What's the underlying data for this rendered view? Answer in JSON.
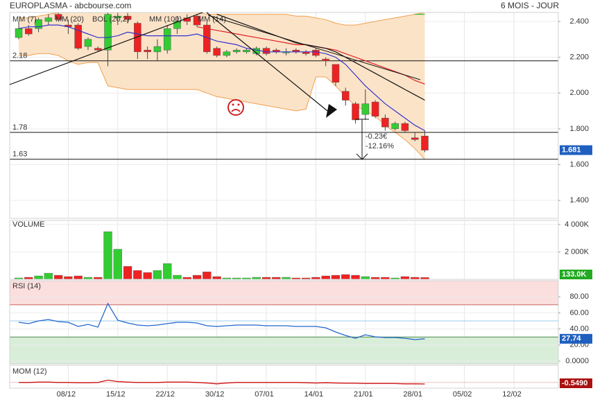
{
  "header": {
    "title": "EUROPLASMA - abcbourse.com",
    "period": "6 MOIS - JOUR"
  },
  "chart_data": [
    {
      "type": "candlestick",
      "categories": [
        null,
        null,
        null,
        null,
        null,
        "08/12",
        null,
        null,
        null,
        null,
        "15/12",
        null,
        null,
        null,
        null,
        "22/12",
        null,
        null,
        null,
        null,
        "30/12",
        null,
        null,
        null,
        null,
        "07/01",
        null,
        null,
        null,
        null,
        "14/01",
        null,
        null,
        null,
        null,
        "21/01",
        null,
        null,
        null,
        null,
        "28/01",
        null,
        null,
        null,
        null,
        "05/02",
        null,
        null,
        null,
        null,
        "12/02",
        null,
        null,
        null,
        null
      ],
      "open": [
        2.31,
        2.36,
        2.36,
        2.4,
        2.44,
        2.38,
        2.38,
        2.26,
        2.25,
        2.24,
        2.42,
        2.43,
        2.39,
        2.24,
        2.23,
        2.24,
        2.36,
        2.42,
        2.43,
        2.38,
        2.25,
        2.21,
        2.23,
        2.23,
        2.22,
        2.25,
        2.24,
        2.23,
        2.24,
        2.23,
        2.24,
        2.19,
        2.16,
        2.01,
        1.94,
        1.88,
        1.95,
        1.86,
        1.8,
        1.83,
        1.75,
        1.76,
        null,
        null,
        null,
        null,
        null,
        null,
        null,
        null,
        null,
        null,
        null,
        null,
        null
      ],
      "high": [
        2.4,
        2.38,
        2.42,
        2.44,
        2.45,
        2.41,
        2.39,
        2.31,
        2.26,
        2.45,
        2.45,
        2.45,
        2.4,
        2.26,
        2.3,
        2.38,
        2.43,
        2.44,
        2.44,
        2.4,
        2.26,
        2.24,
        2.25,
        2.25,
        2.26,
        2.26,
        2.25,
        2.25,
        2.25,
        2.24,
        2.25,
        2.2,
        2.16,
        2.03,
        1.95,
        2.02,
        1.96,
        1.88,
        1.84,
        1.84,
        1.78,
        1.79,
        null,
        null,
        null,
        null,
        null,
        null,
        null,
        null,
        null,
        null,
        null,
        null,
        null
      ],
      "low": [
        2.3,
        2.32,
        2.34,
        2.38,
        2.4,
        2.33,
        2.24,
        2.24,
        2.23,
        2.15,
        2.38,
        2.39,
        2.19,
        2.19,
        2.18,
        2.22,
        2.33,
        2.38,
        2.37,
        2.22,
        2.2,
        2.2,
        2.22,
        2.22,
        2.21,
        2.21,
        2.22,
        2.21,
        2.22,
        2.21,
        2.2,
        2.15,
        2.04,
        1.93,
        1.83,
        1.85,
        1.86,
        1.79,
        1.79,
        1.78,
        1.73,
        1.67,
        null,
        null,
        null,
        null,
        null,
        null,
        null,
        null,
        null,
        null,
        null,
        null,
        null
      ],
      "close": [
        2.36,
        2.33,
        2.41,
        2.42,
        2.41,
        2.37,
        2.25,
        2.3,
        2.24,
        2.44,
        2.43,
        2.41,
        2.23,
        2.23,
        2.26,
        2.36,
        2.4,
        2.4,
        2.38,
        2.23,
        2.21,
        2.23,
        2.24,
        2.24,
        2.25,
        2.22,
        2.23,
        2.23,
        2.23,
        2.22,
        2.21,
        2.18,
        2.06,
        1.96,
        1.85,
        1.94,
        1.87,
        1.81,
        1.83,
        1.79,
        1.74,
        1.681,
        null,
        null,
        null,
        null,
        null,
        null,
        null,
        null,
        null,
        null,
        null,
        null,
        null
      ],
      "up_color": "#33cc33",
      "down_color": "#ee2222",
      "band": {
        "name": "BOL (20,2)",
        "color": "#f0a050",
        "fill": "#fbe3c8",
        "upper": [
          2.42,
          2.42,
          2.43,
          2.44,
          2.45,
          2.45,
          2.45,
          2.45,
          2.45,
          2.45,
          2.45,
          2.45,
          2.45,
          2.45,
          2.45,
          2.45,
          2.45,
          2.45,
          2.45,
          2.44,
          2.44,
          2.44,
          2.44,
          2.44,
          2.44,
          2.44,
          2.44,
          2.44,
          2.43,
          2.43,
          2.42,
          2.41,
          2.39,
          2.38,
          2.38,
          2.39,
          2.4,
          2.41,
          2.42,
          2.43,
          2.44,
          2.45,
          null,
          null,
          null,
          null,
          null,
          null,
          null,
          null,
          null,
          null,
          null,
          null,
          null
        ],
        "lower": [
          2.21,
          2.21,
          2.22,
          2.22,
          2.21,
          2.18,
          2.16,
          2.17,
          2.17,
          2.04,
          2.03,
          2.02,
          2.02,
          2.02,
          2.02,
          2.02,
          2.02,
          2.02,
          2.02,
          2.0,
          1.98,
          1.97,
          1.96,
          1.95,
          1.94,
          1.93,
          1.92,
          1.91,
          1.9,
          1.91,
          2.09,
          2.09,
          2.04,
          1.98,
          1.93,
          1.9,
          1.87,
          1.82,
          1.78,
          1.74,
          1.69,
          1.63,
          null,
          null,
          null,
          null,
          null,
          null,
          null,
          null,
          null,
          null,
          null,
          null,
          null
        ]
      },
      "series": [
        {
          "name": "MM (7)",
          "color": "#3333cc",
          "values": [
            2.36,
            2.37,
            2.37,
            2.38,
            2.38,
            2.37,
            2.35,
            2.33,
            2.31,
            2.31,
            2.32,
            2.34,
            2.33,
            2.32,
            2.32,
            2.32,
            2.32,
            2.32,
            2.33,
            2.31,
            2.29,
            2.28,
            2.27,
            2.25,
            2.24,
            2.23,
            2.23,
            2.23,
            2.23,
            2.23,
            2.23,
            2.22,
            2.2,
            2.16,
            2.1,
            2.04,
            1.99,
            1.94,
            1.9,
            1.86,
            1.82,
            1.79,
            null,
            null,
            null,
            null,
            null,
            null,
            null,
            null,
            null,
            null,
            null,
            null,
            null
          ]
        },
        {
          "name": "MM (20)",
          "color": "#dd2222",
          "values": [
            null,
            null,
            null,
            null,
            null,
            null,
            null,
            null,
            null,
            null,
            null,
            null,
            null,
            null,
            null,
            null,
            null,
            null,
            2.37,
            2.36,
            2.35,
            2.34,
            2.33,
            2.32,
            2.31,
            2.3,
            2.29,
            2.28,
            2.27,
            2.27,
            2.26,
            2.25,
            2.24,
            2.22,
            2.2,
            2.18,
            2.16,
            2.14,
            2.12,
            2.1,
            2.07,
            2.05,
            null,
            null,
            null,
            null,
            null,
            null,
            null,
            null,
            null,
            null,
            null,
            null,
            null
          ]
        },
        {
          "name": "MM (100)",
          "color": "#33bb33",
          "values": [
            null,
            null,
            null,
            null,
            null,
            null,
            null,
            null,
            null,
            null,
            null,
            null,
            null,
            null,
            null,
            null,
            null,
            null,
            null,
            null,
            null,
            null,
            null,
            null,
            null,
            null,
            null,
            null,
            null,
            null,
            null,
            null,
            null,
            null,
            null,
            null,
            null,
            null,
            null,
            null,
            2.44,
            2.44,
            null,
            null,
            null,
            null,
            null,
            null,
            null,
            null,
            null,
            null,
            null,
            null,
            null
          ]
        },
        {
          "name": "MM (14)",
          "color": "#111111",
          "values": [
            null,
            null,
            null,
            null,
            null,
            null,
            null,
            null,
            null,
            null,
            null,
            null,
            null,
            null,
            null,
            null,
            null,
            null,
            null,
            null,
            2.44,
            2.42,
            2.4,
            2.38,
            2.36,
            2.34,
            2.32,
            2.3,
            2.28,
            2.27,
            2.26,
            2.25,
            2.23,
            2.2,
            2.17,
            2.14,
            2.11,
            2.08,
            2.05,
            2.02,
            1.99,
            1.96,
            null,
            null,
            null,
            null,
            null,
            null,
            null,
            null,
            null,
            null,
            null,
            null,
            null
          ]
        }
      ],
      "ylim": [
        1.3,
        2.45
      ],
      "yticks": [
        {
          "value": 2.4,
          "label": "2.400"
        },
        {
          "value": 2.2,
          "label": "2.200"
        },
        {
          "value": 2.0,
          "label": "2.000"
        },
        {
          "value": 1.8,
          "label": "1.800"
        },
        {
          "value": 1.6,
          "label": "1.600"
        },
        {
          "value": 1.4,
          "label": "1.400"
        }
      ],
      "hlines": [
        2.18,
        1.78,
        1.63
      ],
      "last_label": "1.681",
      "annotations": [
        "-0.23€",
        "-12.16%"
      ],
      "grid": true
    },
    {
      "type": "bar",
      "title": "VOLUME",
      "values": [
        100000,
        150000,
        250000,
        450000,
        300000,
        200000,
        250000,
        150000,
        150000,
        3480000,
        2200000,
        950000,
        650000,
        500000,
        650000,
        1150000,
        300000,
        150000,
        300000,
        550000,
        200000,
        100000,
        100000,
        100000,
        150000,
        150000,
        150000,
        150000,
        100000,
        100000,
        150000,
        250000,
        300000,
        350000,
        300000,
        200000,
        150000,
        150000,
        100000,
        200000,
        150000,
        133000,
        null,
        null,
        null,
        null,
        null,
        null,
        null,
        null,
        null,
        null,
        null,
        null,
        null
      ],
      "ylim": [
        0,
        4300000
      ],
      "yticks": [
        {
          "value": 4000000,
          "label": "4 000K"
        },
        {
          "value": 2000000,
          "label": "2 000K"
        }
      ],
      "last_label": "133.0K",
      "grid": true
    },
    {
      "type": "line",
      "title": "RSI (14)",
      "color": "#2266cc",
      "values": [
        48.3,
        46.6,
        50,
        51.7,
        49.1,
        48.3,
        43.1,
        45.7,
        42.2,
        71.6,
        50.9,
        47.4,
        44.8,
        44,
        44.8,
        46.6,
        48.3,
        48.3,
        47.4,
        44,
        43.1,
        44,
        44.8,
        44.8,
        44.8,
        44,
        44,
        44,
        43.1,
        43.1,
        43.1,
        41.4,
        36.2,
        31.9,
        28.4,
        32.8,
        30.2,
        29.3,
        29.3,
        28.4,
        26.7,
        27.74,
        null,
        null,
        null,
        null,
        null,
        null,
        null,
        null,
        null,
        null,
        null,
        null,
        null
      ],
      "ylim": [
        0,
        100
      ],
      "yticks": [
        {
          "value": 80,
          "label": "80.00"
        },
        {
          "value": 60,
          "label": "60.00"
        },
        {
          "value": 40,
          "label": "40.00"
        },
        {
          "value": 20,
          "label": "20.00"
        },
        {
          "value": 0,
          "label": "0.0000"
        }
      ],
      "overbought": 70,
      "oversold": 30,
      "midline": 50,
      "last_label": "27.74",
      "grid": true
    },
    {
      "type": "line",
      "title": "MOM (12)",
      "color": "#cc1111",
      "values": [
        0,
        0,
        0.1,
        0.1,
        0,
        0,
        -0.1,
        -0.1,
        0,
        0.8,
        0.3,
        0.1,
        0,
        0,
        0,
        0.1,
        0.1,
        0.1,
        0,
        -0.2,
        -0.5,
        -0.2,
        0,
        0,
        0,
        0,
        0,
        0,
        0,
        -0.1,
        -0.2,
        -0.1,
        -0.2,
        -0.3,
        -0.3,
        -0.4,
        -0.4,
        -0.4,
        -0.4,
        -0.5,
        -0.5,
        -0.549,
        null,
        null,
        null,
        null,
        null,
        null,
        null,
        null,
        null,
        null,
        null,
        null,
        null
      ],
      "ylim": [
        -2,
        6
      ],
      "last_label": "-0.5490"
    }
  ]
}
